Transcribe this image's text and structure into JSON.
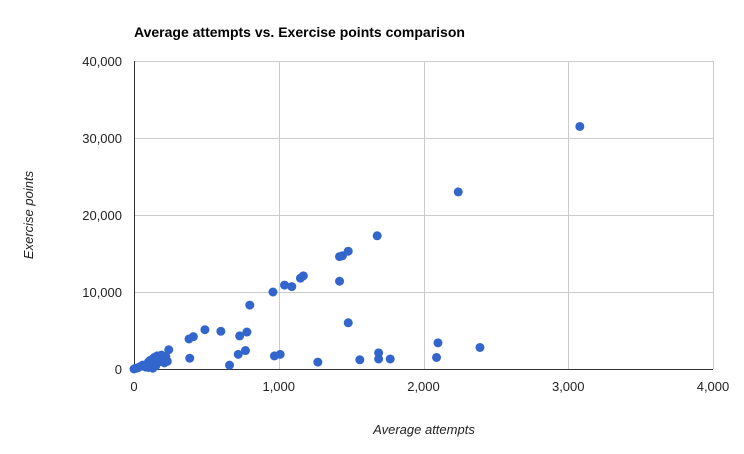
{
  "chart_data": {
    "type": "scatter",
    "title": "Average attempts vs. Exercise points comparison",
    "xlabel": "Average attempts",
    "ylabel": "Exercise points",
    "xlim": [
      0,
      4000
    ],
    "ylim": [
      0,
      40000
    ],
    "x_ticks": [
      "0",
      "1,000",
      "2,000",
      "3,000",
      "4,000"
    ],
    "y_ticks": [
      "0",
      "10,000",
      "20,000",
      "30,000",
      "40,000"
    ],
    "grid": true,
    "legend": "none",
    "colors": {
      "point": "#3366cc",
      "grid": "#cccccc",
      "axis": "#333333"
    },
    "points": [
      [
        0,
        0
      ],
      [
        10,
        80
      ],
      [
        25,
        150
      ],
      [
        40,
        300
      ],
      [
        60,
        500
      ],
      [
        80,
        250
      ],
      [
        100,
        900
      ],
      [
        110,
        1100
      ],
      [
        120,
        600
      ],
      [
        130,
        1300
      ],
      [
        140,
        1500
      ],
      [
        150,
        400
      ],
      [
        160,
        1700
      ],
      [
        170,
        900
      ],
      [
        180,
        1200
      ],
      [
        190,
        1800
      ],
      [
        200,
        1400
      ],
      [
        210,
        800
      ],
      [
        220,
        1600
      ],
      [
        230,
        1000
      ],
      [
        240,
        2500
      ],
      [
        100,
        200
      ],
      [
        130,
        100
      ],
      [
        170,
        1100
      ],
      [
        380,
        3900
      ],
      [
        385,
        1400
      ],
      [
        410,
        4200
      ],
      [
        490,
        5100
      ],
      [
        600,
        4900
      ],
      [
        660,
        500
      ],
      [
        720,
        1900
      ],
      [
        730,
        4300
      ],
      [
        770,
        2400
      ],
      [
        780,
        4800
      ],
      [
        800,
        8300
      ],
      [
        960,
        10000
      ],
      [
        970,
        1700
      ],
      [
        1010,
        1900
      ],
      [
        1040,
        10900
      ],
      [
        1090,
        10700
      ],
      [
        1150,
        11800
      ],
      [
        1170,
        12100
      ],
      [
        1270,
        900
      ],
      [
        1420,
        14600
      ],
      [
        1420,
        11400
      ],
      [
        1440,
        14700
      ],
      [
        1480,
        6000
      ],
      [
        1480,
        15300
      ],
      [
        1560,
        1200
      ],
      [
        1680,
        17300
      ],
      [
        1690,
        2100
      ],
      [
        1690,
        1300
      ],
      [
        1770,
        1300
      ],
      [
        2090,
        1500
      ],
      [
        2100,
        3400
      ],
      [
        2240,
        23000
      ],
      [
        2390,
        2800
      ],
      [
        3080,
        31500
      ]
    ]
  }
}
